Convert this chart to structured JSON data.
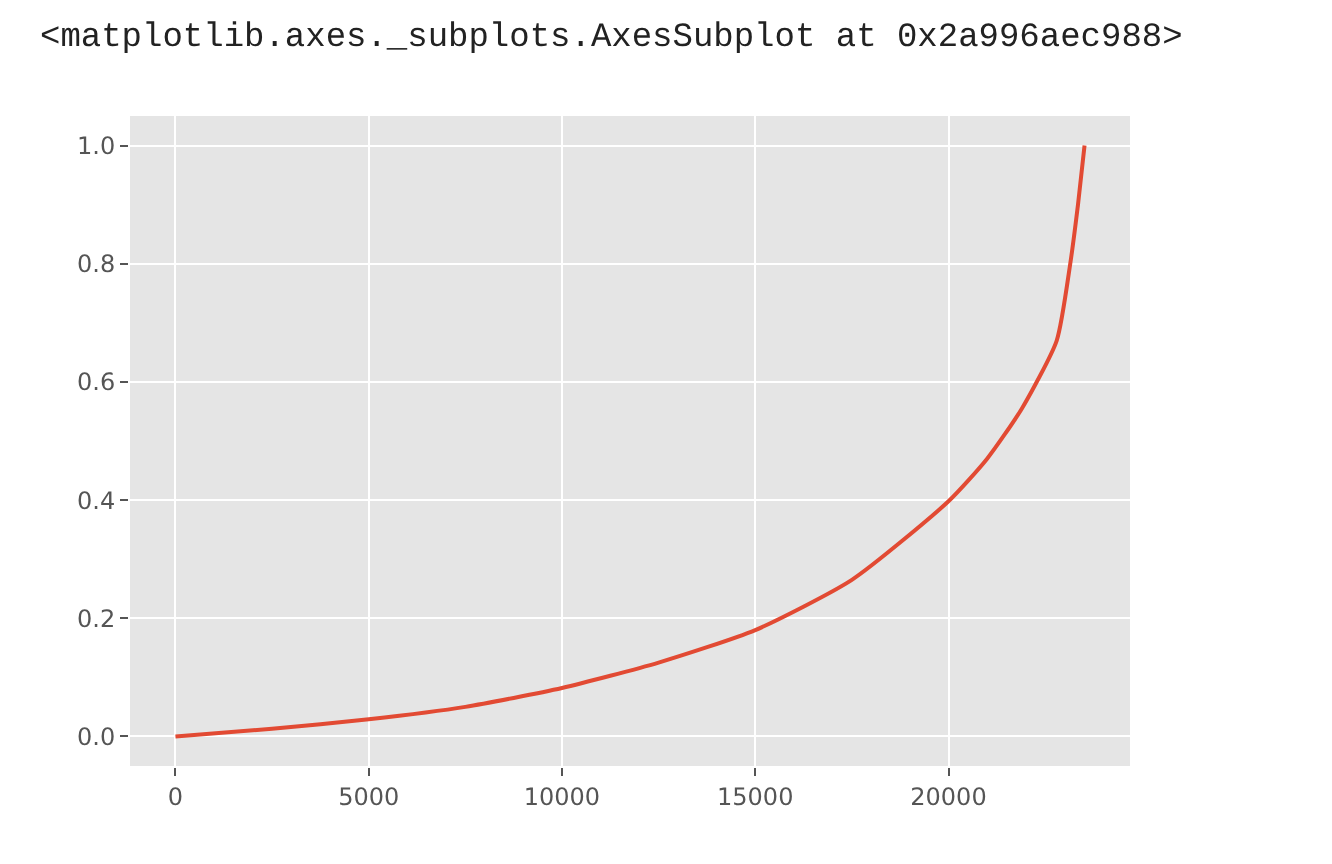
{
  "chart_data": {
    "type": "line",
    "annotations": [
      "<matplotlib.axes._subplots.AxesSubplot at 0x2a996aec988>"
    ],
    "x": [
      0,
      2500,
      5000,
      7500,
      10000,
      12500,
      15000,
      17500,
      20000,
      21000,
      21900,
      22800,
      23150,
      23350,
      23520
    ],
    "series": [
      {
        "color": "#e24a33",
        "values": [
          0,
          0.013,
          0.029,
          0.05,
          0.082,
          0.125,
          0.18,
          0.265,
          0.398,
          0.47,
          0.555,
          0.67,
          0.8,
          0.9,
          1.0
        ]
      }
    ],
    "xlim": [
      -1176,
      24696
    ],
    "xticks": [
      0,
      5000,
      10000,
      15000,
      20000
    ],
    "ylim": [
      -0.05,
      1.05
    ],
    "yticks": [
      {
        "value": 0,
        "label": "0.0"
      },
      {
        "value": 0.2,
        "label": "0.2"
      },
      {
        "value": 0.4,
        "label": "0.4"
      },
      {
        "value": 0.6,
        "label": "0.6"
      },
      {
        "value": 0.8,
        "label": "0.8"
      },
      {
        "value": 1,
        "label": "1.0"
      }
    ],
    "grid": true
  }
}
